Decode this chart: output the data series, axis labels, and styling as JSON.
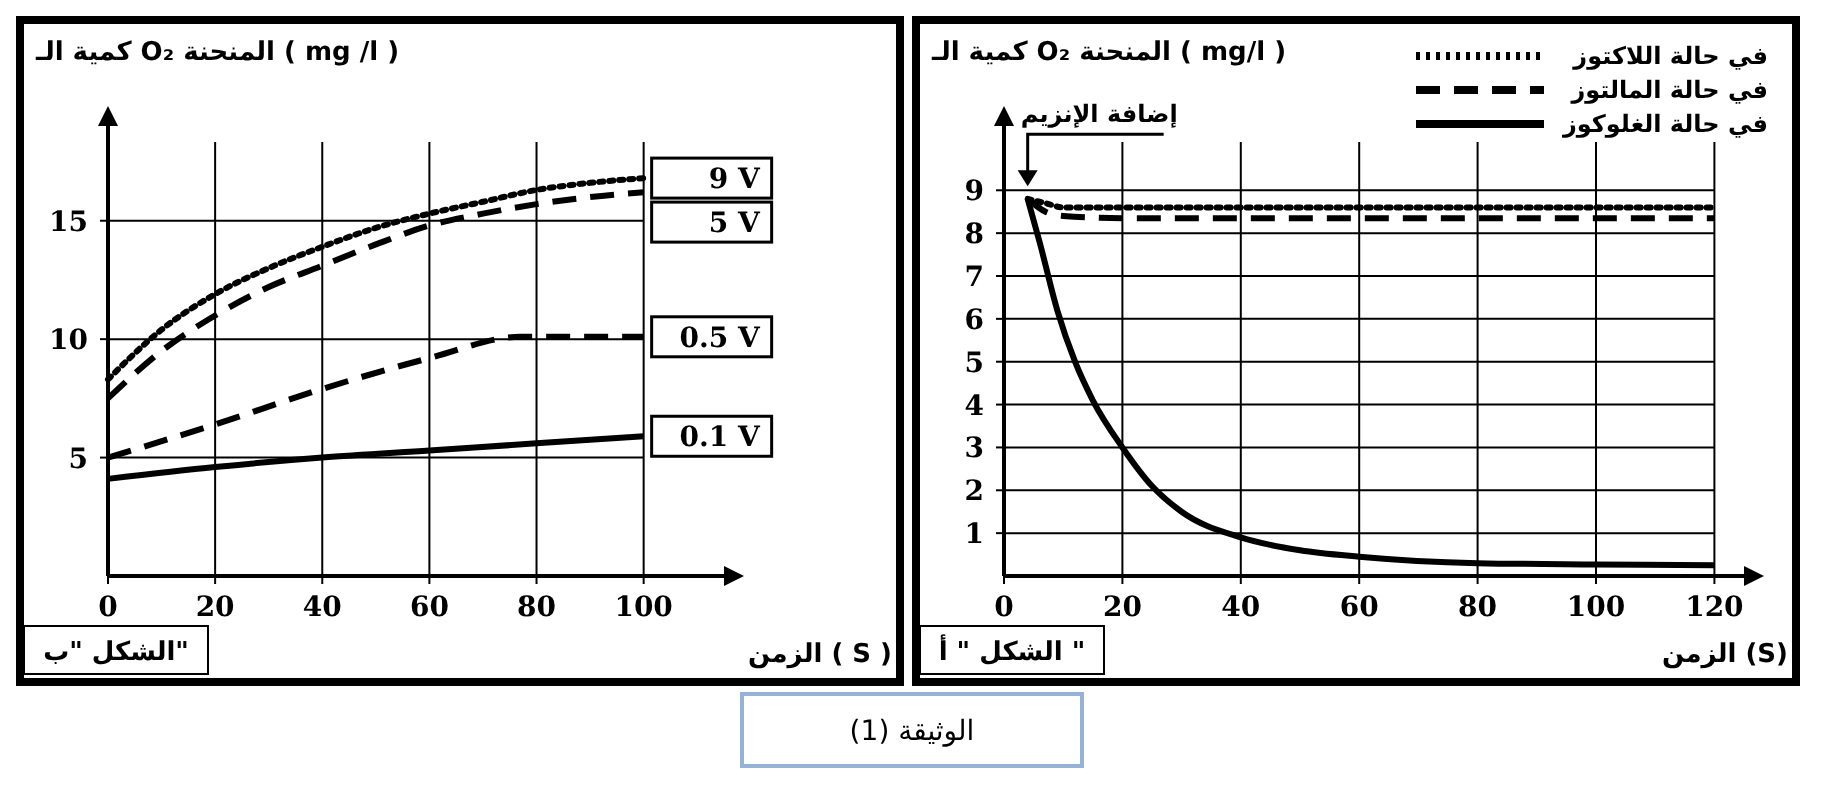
{
  "chart_data": [
    {
      "type": "line",
      "title": "الشكل \"ب\"",
      "ylabel": "كمية الـ O₂ المنحنة ( mg /l )",
      "xlabel": "الزمن ( S )",
      "xlim": [
        0,
        115
      ],
      "ylim": [
        0,
        19
      ],
      "xticks": [
        0,
        20,
        40,
        60,
        80,
        100
      ],
      "yticks": [
        5,
        10,
        15
      ],
      "grid": true,
      "legend": "right",
      "marker": "none",
      "series": [
        {
          "name": "9  V",
          "color": "#000000",
          "line_style": "dotted",
          "x": [
            0,
            10,
            20,
            30,
            40,
            50,
            60,
            70,
            80,
            90,
            100
          ],
          "values": [
            8.3,
            10.4,
            11.9,
            13.0,
            13.9,
            14.7,
            15.3,
            15.8,
            16.3,
            16.6,
            16.8
          ]
        },
        {
          "name": "5 V",
          "color": "#000000",
          "line_style": "dashed",
          "x": [
            0,
            10,
            20,
            30,
            40,
            50,
            60,
            70,
            80,
            90,
            100
          ],
          "values": [
            7.5,
            9.5,
            11.0,
            12.2,
            13.1,
            14.0,
            14.8,
            15.3,
            15.7,
            16.0,
            16.2
          ]
        },
        {
          "name": "0.5 V",
          "color": "#000000",
          "line_style": "dashed",
          "x": [
            0,
            20,
            40,
            60,
            77,
            100
          ],
          "values": [
            5.0,
            6.4,
            7.9,
            9.2,
            10.1,
            10.1
          ]
        },
        {
          "name": "0.1 V",
          "color": "#000000",
          "line_style": "solid",
          "x": [
            0,
            20,
            40,
            60,
            80,
            100
          ],
          "values": [
            4.1,
            4.6,
            5.0,
            5.3,
            5.6,
            5.9
          ]
        }
      ],
      "annotations": [
        "الوثيقة (1)"
      ]
    },
    {
      "type": "line",
      "title": "الشكل \" أ \"",
      "ylabel": "كمية الـ O₂ المنحنة ( mg/l )",
      "xlabel": "الزمن (S)",
      "xlim": [
        0,
        125
      ],
      "ylim": [
        0,
        10.5
      ],
      "xticks": [
        0,
        20,
        40,
        60,
        80,
        100,
        120
      ],
      "yticks": [
        1,
        2,
        3,
        4,
        5,
        6,
        7,
        8,
        9
      ],
      "grid": true,
      "legend": "top right",
      "marker": "none",
      "series": [
        {
          "name": "في حالة اللاكتوز",
          "color": "#000000",
          "line_style": "dotted",
          "x": [
            4,
            7,
            10,
            20,
            120
          ],
          "values": [
            8.8,
            8.7,
            8.6,
            8.6,
            8.6
          ]
        },
        {
          "name": "في حالة المالتوز",
          "color": "#000000",
          "line_style": "dashed",
          "x": [
            4,
            7,
            10,
            20,
            120
          ],
          "values": [
            8.8,
            8.5,
            8.4,
            8.35,
            8.35
          ]
        },
        {
          "name": "في حالة الغلوكوز",
          "color": "#000000",
          "line_style": "solid",
          "x": [
            4,
            6,
            9,
            12,
            15,
            20,
            25,
            30,
            40,
            50,
            60,
            80,
            100,
            120
          ],
          "values": [
            8.8,
            7.8,
            6.2,
            5.0,
            4.1,
            3.0,
            2.1,
            1.5,
            0.9,
            0.6,
            0.45,
            0.3,
            0.27,
            0.25
          ]
        }
      ],
      "annotations": [
        {
          "text": "إضافة الإنزيم",
          "x": 4,
          "y": 9
        }
      ]
    }
  ]
}
